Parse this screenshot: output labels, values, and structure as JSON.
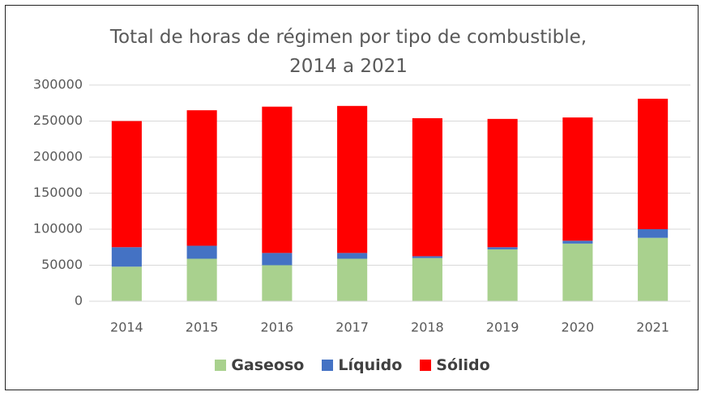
{
  "chart_data": {
    "type": "stacked-bar",
    "title": "Total de horas de régimen por tipo de combustible, 2014 a 2021",
    "categories": [
      "2014",
      "2015",
      "2016",
      "2017",
      "2018",
      "2019",
      "2020",
      "2021"
    ],
    "series": [
      {
        "name": "Gaseoso",
        "color": "#a9d18e",
        "values": [
          48000,
          59000,
          50000,
          59000,
          60000,
          72000,
          80000,
          88000
        ]
      },
      {
        "name": "Líquido",
        "color": "#4472c4",
        "values": [
          27000,
          18000,
          17000,
          8000,
          2500,
          3000,
          4000,
          12000
        ]
      },
      {
        "name": "Sólido",
        "color": "#ff0000",
        "values": [
          175000,
          188000,
          203000,
          204000,
          191500,
          178000,
          171000,
          181000
        ]
      }
    ],
    "ylim": [
      0,
      300000
    ],
    "yticks": [
      0,
      50000,
      100000,
      150000,
      200000,
      250000,
      300000
    ],
    "grid": true,
    "legend": "bottom"
  }
}
